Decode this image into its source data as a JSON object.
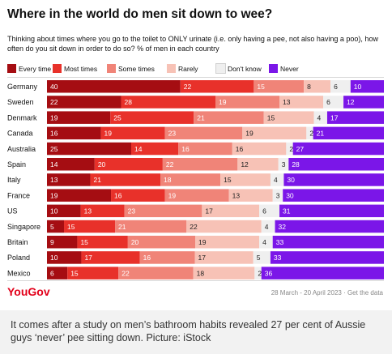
{
  "header": {
    "title": "Where in the world do men sit down to wee?",
    "subtitle": "Thinking about times where you go to the toilet to ONLY urinate (i.e. only having a pee, not also having a poo), how often do you sit down in order to do so? % of men in each country"
  },
  "footer": {
    "brand": "YouGov",
    "date_text": "28 March - 20 April 2023 · Get the data"
  },
  "caption": "It comes after a study on men’s bathroom habits revealed 27 per cent of Aussie guys ‘never’ pee sitting down. Picture: iStock",
  "chart_data": {
    "type": "bar",
    "orientation": "horizontal",
    "stacked": true,
    "normalized": true,
    "title": "Where in the world do men sit down to wee?",
    "categories": [
      "Germany",
      "Sweden",
      "Denmark",
      "Canada",
      "Australia",
      "Spain",
      "Italy",
      "France",
      "US",
      "Singapore",
      "Britain",
      "Poland",
      "Mexico"
    ],
    "series": [
      {
        "name": "Every time",
        "color": "#a50d12",
        "values": [
          40,
          22,
          19,
          16,
          25,
          14,
          13,
          19,
          10,
          5,
          9,
          10,
          6
        ]
      },
      {
        "name": "Most times",
        "color": "#e8312a",
        "values": [
          22,
          28,
          25,
          19,
          14,
          20,
          21,
          16,
          13,
          15,
          15,
          17,
          15
        ]
      },
      {
        "name": "Some times",
        "color": "#f08478",
        "values": [
          15,
          19,
          21,
          23,
          16,
          22,
          18,
          19,
          23,
          21,
          20,
          16,
          22
        ]
      },
      {
        "name": "Rarely",
        "color": "#f7c2b6",
        "values": [
          8,
          13,
          15,
          19,
          16,
          12,
          15,
          13,
          17,
          22,
          19,
          17,
          18
        ]
      },
      {
        "name": "Don't know",
        "color": "#efefef",
        "values": [
          6,
          6,
          4,
          2,
          2,
          3,
          4,
          3,
          6,
          4,
          4,
          5,
          2
        ]
      },
      {
        "name": "Never",
        "color": "#7b16e8",
        "values": [
          10,
          12,
          17,
          21,
          27,
          28,
          30,
          30,
          31,
          32,
          33,
          33,
          36
        ]
      }
    ],
    "legend_position": "top",
    "grid": false
  }
}
